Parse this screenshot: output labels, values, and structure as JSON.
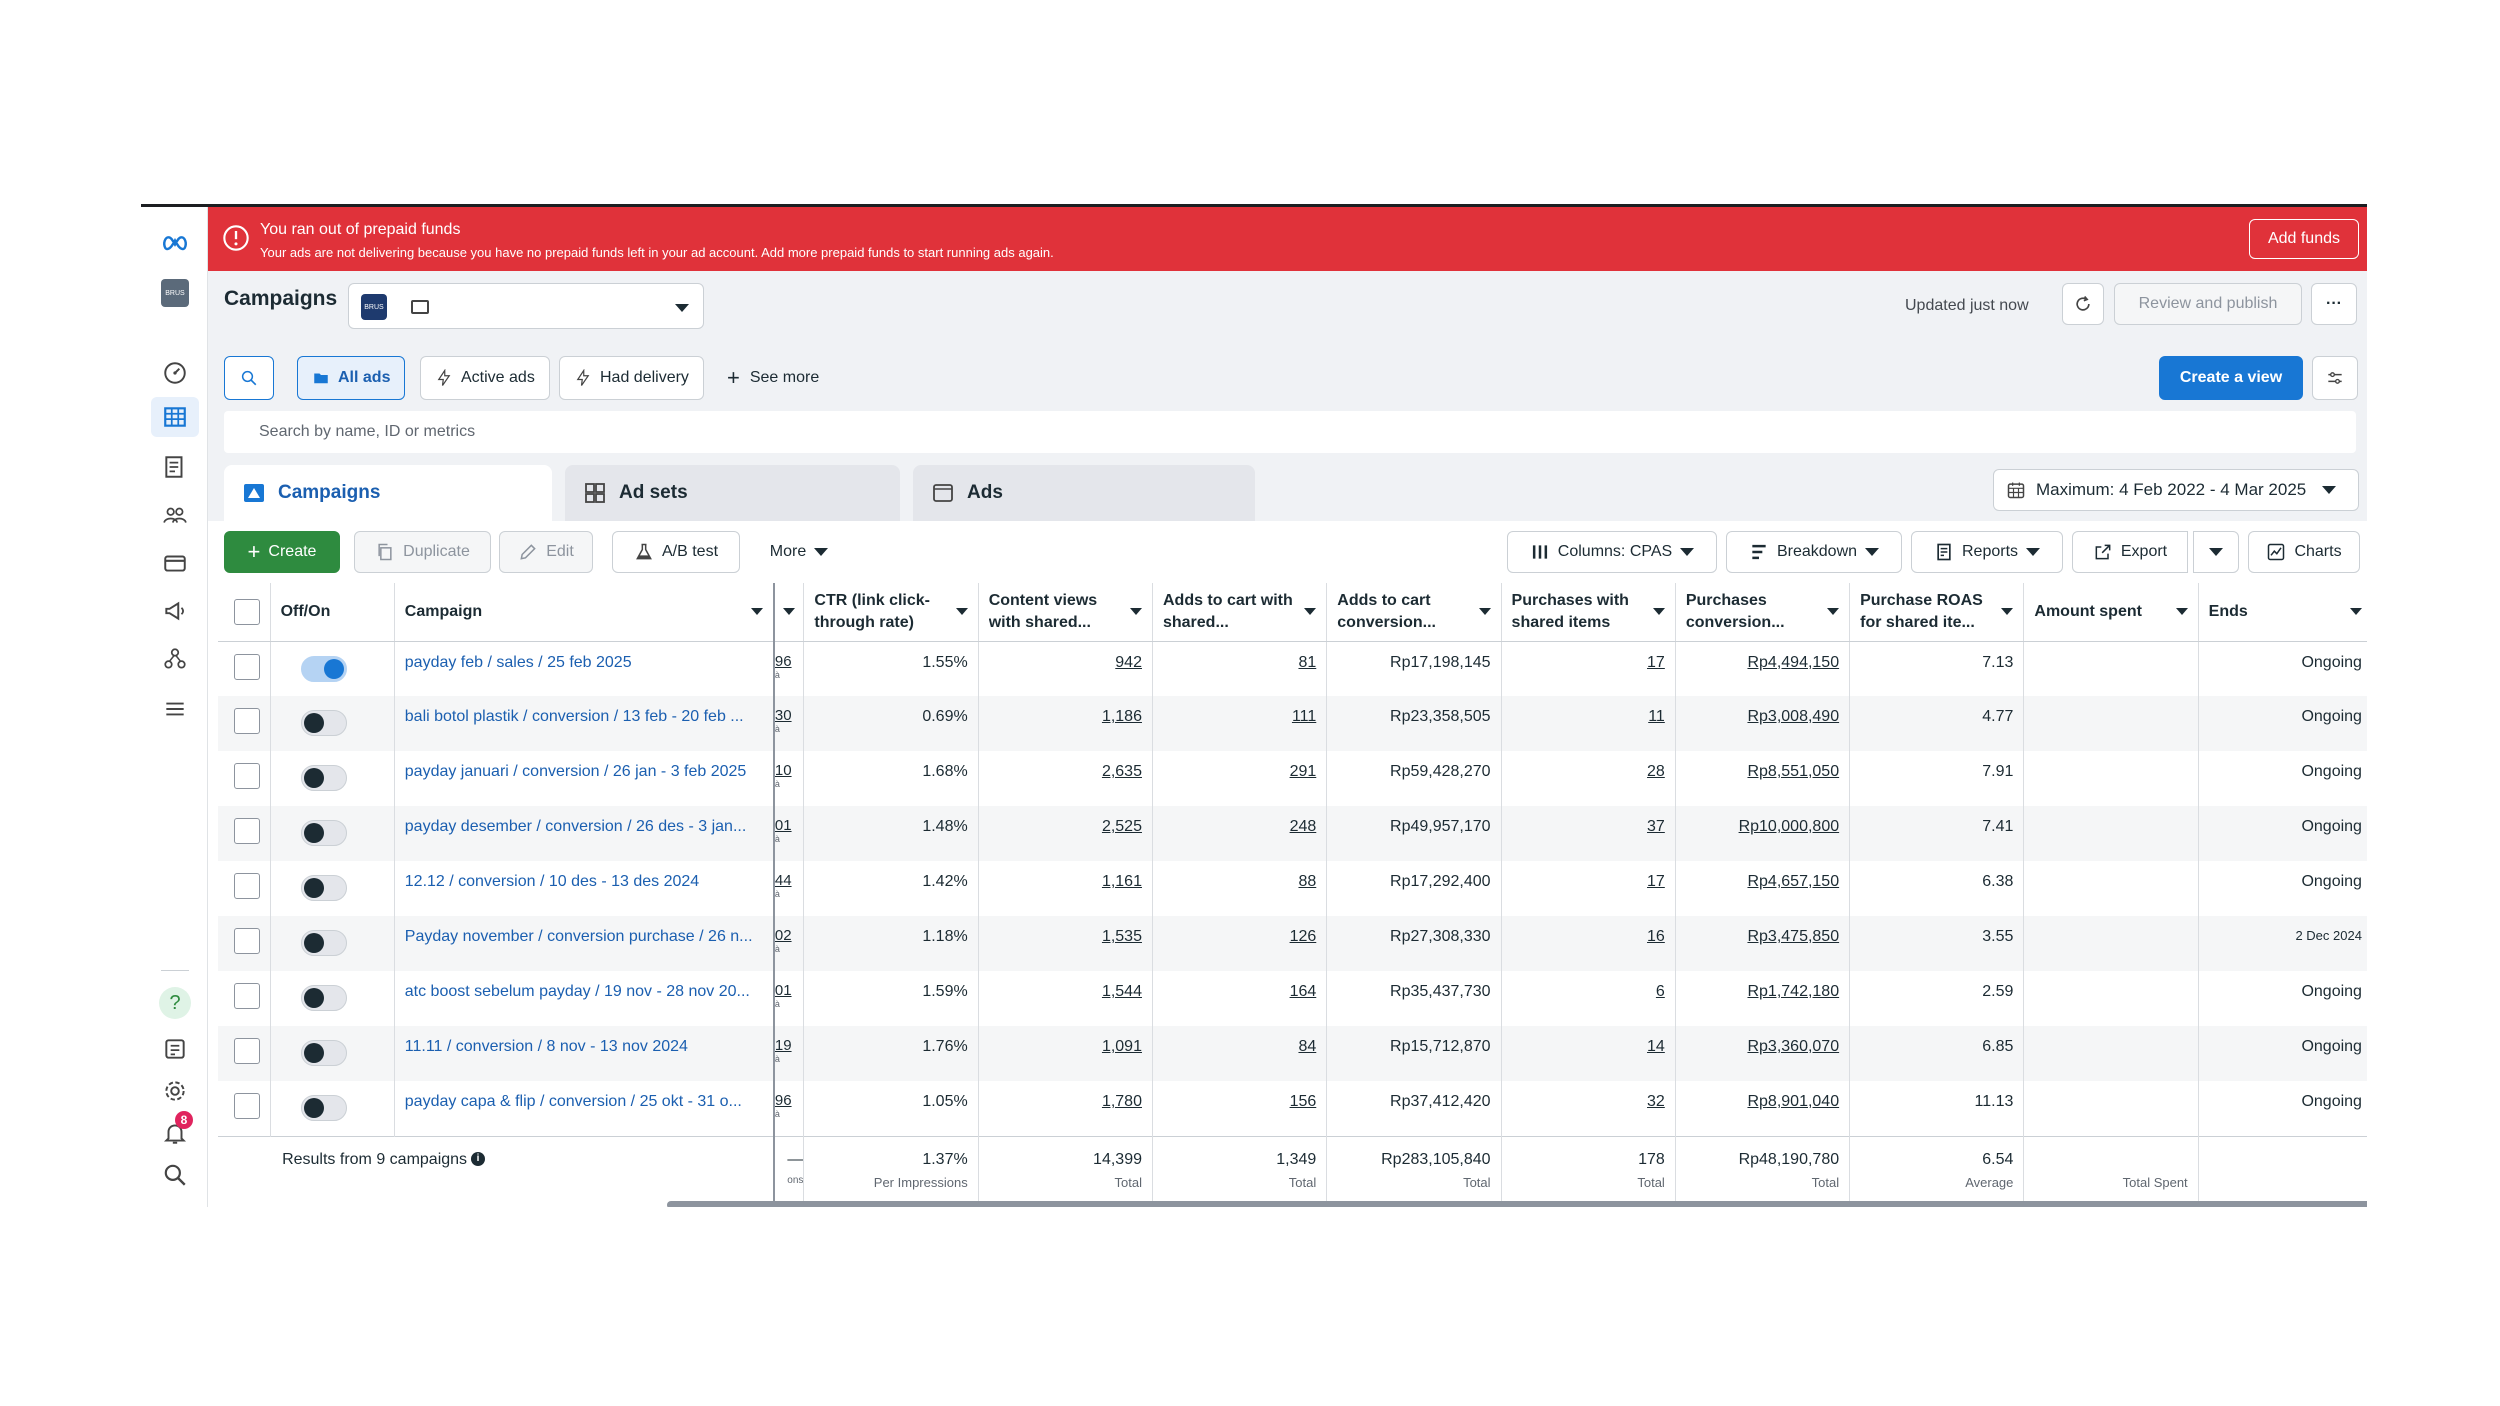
{
  "alert": {
    "title": "You ran out of prepaid funds",
    "message": "Your ads are not delivering because you have no prepaid funds left in your ad account. Add more prepaid funds to start running ads again.",
    "button": "Add funds",
    "color": "#e0323a"
  },
  "sidebar": {
    "items": [
      "meta-logo-icon",
      "account-avatar",
      "dashboard-icon",
      "campaigns-table-icon",
      "pages-icon",
      "audiences-icon",
      "billing-icon",
      "advertise-icon",
      "business-icon",
      "menu-icon",
      "help-icon",
      "reports-icon",
      "settings-icon",
      "notifications-icon",
      "search-icon"
    ],
    "notification_count": "8",
    "account_logo_text": "BRUS"
  },
  "header": {
    "title": "Campaigns",
    "updated": "Updated just now",
    "review_publish": "Review and publish",
    "more": "···"
  },
  "filters": {
    "all_ads": "All ads",
    "active_ads": "Active ads",
    "had_delivery": "Had delivery",
    "see_more": "See more",
    "create_view": "Create a view"
  },
  "search": {
    "placeholder": "Search by name, ID or metrics"
  },
  "tabs": [
    {
      "label": "Campaigns"
    },
    {
      "label": "Ad sets"
    },
    {
      "label": "Ads"
    }
  ],
  "date_range": "Maximum: 4 Feb 2022 - 4 Mar 2025",
  "toolbar": {
    "create": "Create",
    "duplicate": "Duplicate",
    "edit": "Edit",
    "ab_test": "A/B test",
    "more": "More",
    "columns": "Columns: CPAS",
    "breakdown": "Breakdown",
    "reports": "Reports",
    "export": "Export",
    "charts": "Charts"
  },
  "table": {
    "headers": {
      "offon": "Off/On",
      "campaign": "Campaign",
      "ctr": "CTR (link click-through rate)",
      "content_views": "Content views with shared...",
      "adds_to_cart": "Adds to cart with shared...",
      "adds_conv": "Adds to cart conversion...",
      "purchases": "Purchases with shared items",
      "purchases_conv": "Purchases conversion...",
      "roas": "Purchase ROAS for shared ite...",
      "amount_spent": "Amount spent",
      "ends": "Ends"
    },
    "rows": [
      {
        "on": true,
        "campaign": "payday feb / sales / 25 feb 2025",
        "prev": "96",
        "ctr": "1.55%",
        "cv": "942",
        "atc": "81",
        "atc_conv": "Rp17,198,145",
        "pur": "17",
        "pur_conv": "Rp4,494,150",
        "roas": "7.13",
        "spent": "",
        "ends": "Ongoing"
      },
      {
        "on": false,
        "campaign": "bali botol plastik / conversion / 13 feb - 20 feb ...",
        "prev": "30",
        "ctr": "0.69%",
        "cv": "1,186",
        "atc": "111",
        "atc_conv": "Rp23,358,505",
        "pur": "11",
        "pur_conv": "Rp3,008,490",
        "roas": "4.77",
        "spent": "",
        "ends": "Ongoing"
      },
      {
        "on": false,
        "campaign": "payday januari / conversion / 26 jan - 3 feb 2025",
        "prev": "10",
        "ctr": "1.68%",
        "cv": "2,635",
        "atc": "291",
        "atc_conv": "Rp59,428,270",
        "pur": "28",
        "pur_conv": "Rp8,551,050",
        "roas": "7.91",
        "spent": "",
        "ends": "Ongoing"
      },
      {
        "on": false,
        "campaign": "payday desember / conversion / 26 des - 3 jan...",
        "prev": "01",
        "ctr": "1.48%",
        "cv": "2,525",
        "atc": "248",
        "atc_conv": "Rp49,957,170",
        "pur": "37",
        "pur_conv": "Rp10,000,800",
        "roas": "7.41",
        "spent": "",
        "ends": "Ongoing"
      },
      {
        "on": false,
        "campaign": "12.12 / conversion / 10 des - 13 des 2024",
        "prev": "44",
        "ctr": "1.42%",
        "cv": "1,161",
        "atc": "88",
        "atc_conv": "Rp17,292,400",
        "pur": "17",
        "pur_conv": "Rp4,657,150",
        "roas": "6.38",
        "spent": "",
        "ends": "Ongoing"
      },
      {
        "on": false,
        "campaign": "Payday november / conversion purchase / 26 n...",
        "prev": "02",
        "ctr": "1.18%",
        "cv": "1,535",
        "atc": "126",
        "atc_conv": "Rp27,308,330",
        "pur": "16",
        "pur_conv": "Rp3,475,850",
        "roas": "3.55",
        "spent": "",
        "ends": "2 Dec 2024"
      },
      {
        "on": false,
        "campaign": "atc boost sebelum payday / 19 nov - 28 nov 20...",
        "prev": "01",
        "ctr": "1.59%",
        "cv": "1,544",
        "atc": "164",
        "atc_conv": "Rp35,437,730",
        "pur": "6",
        "pur_conv": "Rp1,742,180",
        "roas": "2.59",
        "spent": "",
        "ends": "Ongoing"
      },
      {
        "on": false,
        "campaign": "11.11 / conversion / 8 nov - 13 nov 2024",
        "prev": "19",
        "ctr": "1.76%",
        "cv": "1,091",
        "atc": "84",
        "atc_conv": "Rp15,712,870",
        "pur": "14",
        "pur_conv": "Rp3,360,070",
        "roas": "6.85",
        "spent": "",
        "ends": "Ongoing"
      },
      {
        "on": false,
        "campaign": "payday capa & flip / conversion / 25 okt - 31 o...",
        "prev": "96",
        "ctr": "1.05%",
        "cv": "1,780",
        "atc": "156",
        "atc_conv": "Rp37,412,420",
        "pur": "32",
        "pur_conv": "Rp8,901,040",
        "roas": "11.13",
        "spent": "",
        "ends": "Ongoing"
      }
    ],
    "footer": {
      "label": "Results from 9 campaigns",
      "prev": "—",
      "prev_sub": "ons",
      "ctr": "1.37%",
      "ctr_sub": "Per Impressions",
      "cv": "14,399",
      "cv_sub": "Total",
      "atc": "1,349",
      "atc_sub": "Total",
      "atc_conv": "Rp283,105,840",
      "atc_conv_sub": "Total",
      "pur": "178",
      "pur_sub": "Total",
      "pur_conv": "Rp48,190,780",
      "pur_conv_sub": "Total",
      "roas": "6.54",
      "roas_sub": "Average",
      "spent_sub": "Total Spent"
    }
  },
  "colors": {
    "accent": "#1877d4",
    "create_button": "#2e8b3f",
    "link": "#1b5fb0"
  }
}
